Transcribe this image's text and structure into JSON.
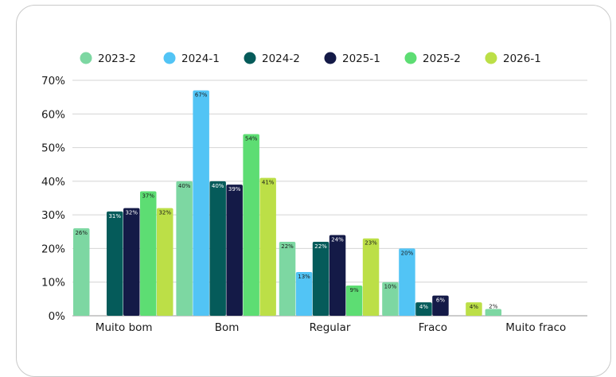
{
  "chart_data": {
    "type": "bar",
    "categories": [
      "Muito bom",
      "Bom",
      "Regular",
      "Fraco",
      "Muito fraco"
    ],
    "series": [
      {
        "name": "2023-2",
        "color": "#7dd7a2",
        "values": [
          26,
          40,
          22,
          10,
          2
        ],
        "labels": [
          "26%",
          "40%",
          "22%",
          "10%",
          "2%"
        ]
      },
      {
        "name": "2024-1",
        "color": "#52c4f5",
        "values": [
          0,
          67,
          13,
          20,
          0
        ],
        "labels": [
          "",
          "67%",
          "13%",
          "20%",
          ""
        ]
      },
      {
        "name": "2024-2",
        "color": "#055b5a",
        "values": [
          31,
          40,
          22,
          4,
          0
        ],
        "labels": [
          "31%",
          "40%",
          "22%",
          "4%",
          ""
        ]
      },
      {
        "name": "2025-1",
        "color": "#141a47",
        "values": [
          32,
          39,
          24,
          6,
          0
        ],
        "labels": [
          "32%",
          "39%",
          "24%",
          "6%",
          ""
        ]
      },
      {
        "name": "2025-2",
        "color": "#5ddd73",
        "values": [
          37,
          54,
          9,
          0,
          0
        ],
        "labels": [
          "37%",
          "54%",
          "9%",
          "",
          ""
        ]
      },
      {
        "name": "2026-1",
        "color": "#bcdf47",
        "values": [
          32,
          41,
          23,
          4,
          0
        ],
        "labels": [
          "32%",
          "41%",
          "23%",
          "4%",
          ""
        ]
      }
    ],
    "yticks": [
      "0%",
      "10%",
      "20%",
      "30%",
      "40%",
      "50%",
      "60%",
      "70%"
    ],
    "ylim": [
      0,
      70
    ],
    "grid": true,
    "legend": "top"
  }
}
